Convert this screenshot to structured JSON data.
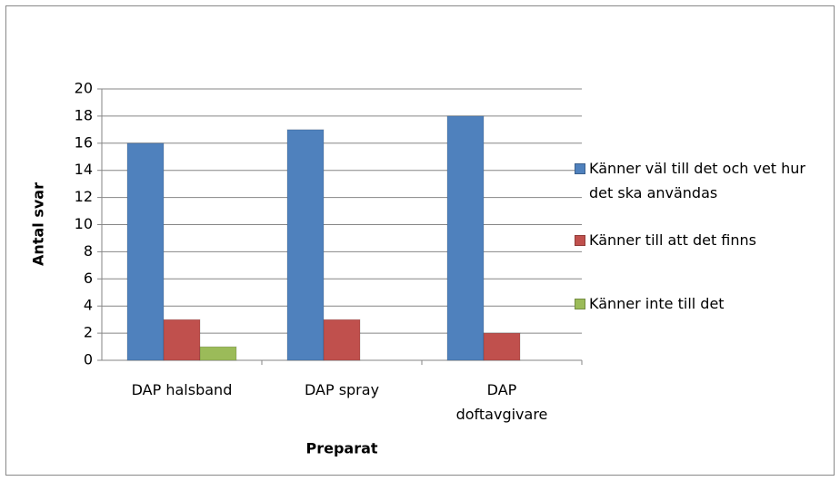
{
  "chart_data": {
    "type": "bar",
    "x_label": "Preparat",
    "y_label": "Antal svar",
    "categories": [
      "DAP halsband",
      "DAP spray",
      "DAP doftavgivare"
    ],
    "series": [
      {
        "name": "Känner väl till det och vet hur det ska användas",
        "color": "#4f81bd",
        "values": [
          16,
          17,
          18
        ]
      },
      {
        "name": "Känner till att det finns",
        "color": "#c0504d",
        "values": [
          3,
          3,
          2
        ]
      },
      {
        "name": "Känner inte till det",
        "color": "#9bbb59",
        "values": [
          1,
          0,
          0
        ]
      }
    ],
    "ylim": [
      0,
      20
    ],
    "yticks": [
      0,
      2,
      4,
      6,
      8,
      10,
      12,
      14,
      16,
      18,
      20
    ],
    "grid": true,
    "legend": "right"
  }
}
